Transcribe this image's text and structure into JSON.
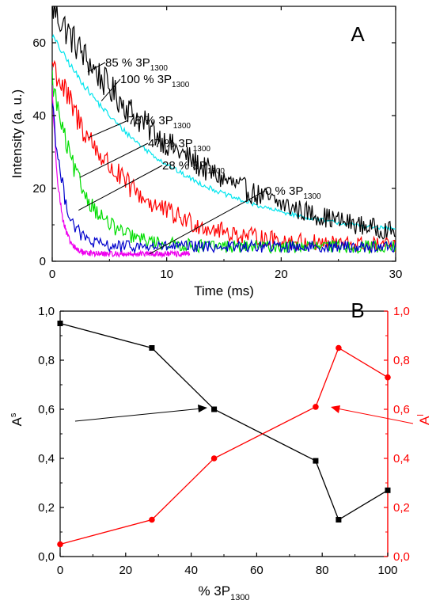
{
  "chart_data": [
    {
      "panel_label": "A",
      "type": "line",
      "xlabel": "Time (ms)",
      "ylabel": "Intensity (a. u.)",
      "xlim": [
        0,
        30
      ],
      "ylim": [
        0,
        70
      ],
      "xticks": [
        "0",
        "10",
        "20",
        "30"
      ],
      "yticks": [
        "0",
        "20",
        "40",
        "60"
      ],
      "grid": false,
      "series": [
        {
          "name": "85 % 3P1300",
          "label_main": "85 % 3P",
          "label_sub": "1300",
          "color": "#000000",
          "tau_ms": 12.5,
          "baseline": 2,
          "x_end": 30,
          "noise": 3.0,
          "points": [
            [
              0,
              70
            ],
            [
              1,
              64
            ],
            [
              2,
              55
            ],
            [
              3,
              48
            ],
            [
              5,
              39
            ],
            [
              7,
              33
            ],
            [
              10,
              24
            ],
            [
              15,
              17
            ],
            [
              20,
              14
            ],
            [
              25,
              10
            ],
            [
              30,
              7
            ]
          ]
        },
        {
          "name": "100 % 3P1300",
          "label_main": "100 % 3P",
          "label_sub": "1300",
          "color": "#00e5ee",
          "tau_ms": 10.0,
          "baseline": 6,
          "x_end": 30,
          "noise": 0.6,
          "points": [
            [
              0,
              62
            ],
            [
              2,
              50
            ],
            [
              5,
              38
            ],
            [
              10,
              27
            ],
            [
              15,
              21
            ],
            [
              20,
              16
            ],
            [
              25,
              12
            ],
            [
              30,
              9
            ]
          ]
        },
        {
          "name": "78 % 3P1300",
          "label_main": "78 % 3P",
          "label_sub": "1300",
          "color": "#ff0000",
          "tau_ms": 6.0,
          "baseline": 4,
          "x_end": 30,
          "noise": 3.0,
          "points": [
            [
              0,
              55
            ],
            [
              2,
              40
            ],
            [
              4,
              31
            ],
            [
              6,
              26
            ],
            [
              8,
              21
            ],
            [
              10,
              15
            ],
            [
              15,
              9
            ],
            [
              20,
              6
            ],
            [
              30,
              5
            ]
          ]
        },
        {
          "name": "47 % 3P1300",
          "label_main": "47 % 3P",
          "label_sub": "1300",
          "color": "#00dd00",
          "tau_ms": 2.5,
          "baseline": 4,
          "x_end": 30,
          "noise": 2.4,
          "points": [
            [
              0,
              50
            ],
            [
              1,
              38
            ],
            [
              2,
              25
            ],
            [
              3,
              17
            ],
            [
              5,
              10
            ],
            [
              10,
              6
            ],
            [
              20,
              4
            ],
            [
              30,
              4
            ]
          ]
        },
        {
          "name": "28 % 3P1300",
          "label_main": "28 % 3P",
          "label_sub": "1300",
          "color": "#0000cc",
          "tau_ms": 1.0,
          "baseline": 4,
          "x_end": 30,
          "noise": 2.2,
          "points": [
            [
              0,
              45
            ],
            [
              0.5,
              20
            ],
            [
              1,
              13
            ],
            [
              2,
              9
            ],
            [
              5,
              6
            ],
            [
              10,
              4
            ],
            [
              30,
              3
            ]
          ]
        },
        {
          "name": "0 % 3P1300",
          "label_main": "0 % 3P",
          "label_sub": "1300",
          "color": "#ee00ee",
          "tau_ms": 0.6,
          "baseline": 2,
          "x_end": 12,
          "noise": 1.2,
          "points": [
            [
              0,
              48
            ],
            [
              0.5,
              16
            ],
            [
              1,
              8
            ],
            [
              2,
              5
            ],
            [
              5,
              3
            ],
            [
              12,
              2
            ]
          ]
        }
      ]
    },
    {
      "panel_label": "B",
      "type": "line",
      "xlabel_main": "% 3P",
      "xlabel_sub": "1300",
      "ylabel_left_main": "A",
      "ylabel_left_sup": "s",
      "ylabel_right_main": "A",
      "ylabel_right_sup": "l",
      "xlim": [
        0,
        100
      ],
      "ylim_left": [
        0,
        1
      ],
      "ylim_right": [
        0,
        1
      ],
      "xticks": [
        "0",
        "20",
        "40",
        "60",
        "80",
        "100"
      ],
      "yticks_left": [
        "0,0",
        "0,2",
        "0,4",
        "0,6",
        "0,8",
        "1,0"
      ],
      "yticks_right": [
        "0,0",
        "0,2",
        "0,4",
        "0,6",
        "0,8",
        "1,0"
      ],
      "grid": false,
      "series": [
        {
          "name": "As",
          "axis": "left",
          "marker": "square",
          "color": "#000000",
          "x": [
            0,
            28,
            47,
            78,
            85,
            100
          ],
          "y": [
            0.95,
            0.85,
            0.6,
            0.39,
            0.15,
            0.27
          ]
        },
        {
          "name": "Al",
          "axis": "right",
          "marker": "circle",
          "color": "#ff0000",
          "x": [
            0,
            28,
            47,
            78,
            85,
            100
          ],
          "y": [
            0.05,
            0.15,
            0.4,
            0.61,
            0.85,
            0.73
          ]
        }
      ]
    }
  ]
}
